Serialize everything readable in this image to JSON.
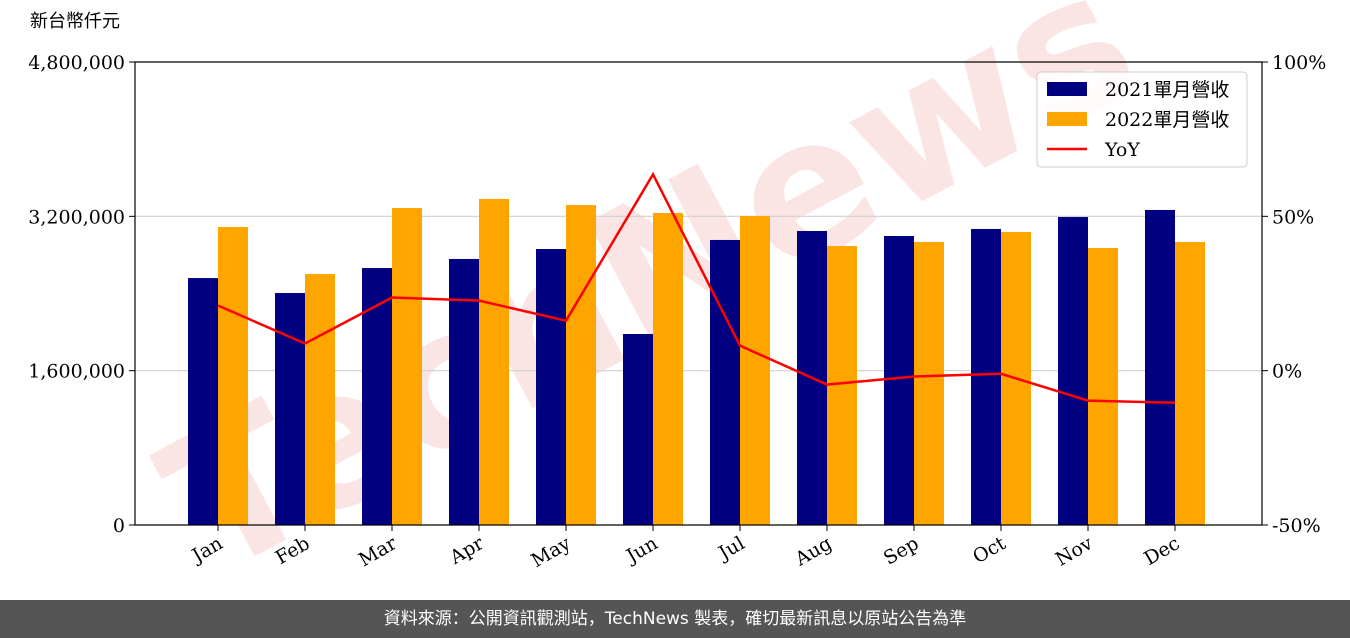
{
  "chart_data": {
    "type": "bar",
    "y_label": "新台幣仟元",
    "watermark": "TechNews",
    "categories": [
      "Jan",
      "Feb",
      "Mar",
      "Apr",
      "May",
      "Jun",
      "Jul",
      "Aug",
      "Sep",
      "Oct",
      "Nov",
      "Dec"
    ],
    "series": [
      {
        "name": "2021單月營收",
        "type": "bar",
        "color": "#000080",
        "values": [
          2560000,
          2405000,
          2664000,
          2758000,
          2861000,
          1980000,
          2955000,
          3048000,
          2996000,
          3069000,
          3193000,
          3266000
        ]
      },
      {
        "name": "2022單月營收",
        "type": "bar",
        "color": "#ffa500",
        "values": [
          3089000,
          2602000,
          3286000,
          3380000,
          3317000,
          3235000,
          3203000,
          2892000,
          2934000,
          3038000,
          2872000,
          2934000
        ]
      },
      {
        "name": "YoY",
        "type": "line",
        "axis": "y2",
        "color": "#ff0000",
        "values": [
          21.1,
          8.8,
          23.7,
          22.7,
          16.2,
          63.6,
          8.1,
          -4.5,
          -1.9,
          -1.0,
          -9.7,
          -10.4
        ]
      }
    ],
    "ylim": [
      0,
      4800000
    ],
    "yticks": [
      0,
      {
        "value": 1600000,
        "label": "1,600,000"
      },
      {
        "value": 3200000,
        "label": "3,200,000"
      },
      {
        "value": 4800000,
        "label": "4,800,000"
      }
    ],
    "y2lim": [
      -50,
      100
    ],
    "y2ticks": [
      {
        "value": -50,
        "label": "-50%"
      },
      {
        "value": 0,
        "label": "0%"
      },
      {
        "value": 50,
        "label": "50%"
      },
      {
        "value": 100,
        "label": "100%"
      }
    ],
    "grid": true,
    "legend": "upper right",
    "source": "資料來源：公開資訊觀測站，TechNews 製表，確切最新訊息以原站公告為準"
  }
}
